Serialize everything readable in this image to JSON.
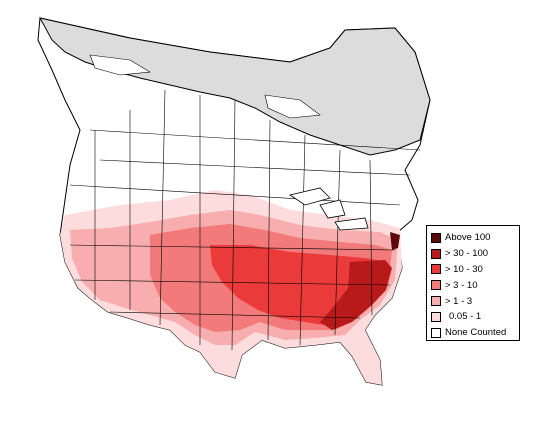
{
  "legend": {
    "items": [
      {
        "label": "Above 100",
        "color": "#5a0a0a"
      },
      {
        "label": "> 30 - 100",
        "color": "#b81a1a"
      },
      {
        "label": "> 10 - 30",
        "color": "#ea3a3a"
      },
      {
        "label": "> 3 - 10",
        "color": "#f27a7a"
      },
      {
        "label": "> 1 - 3",
        "color": "#f8aeae"
      },
      {
        "label": "0.05 - 1",
        "color": "#fcdcdc"
      },
      {
        "label": "None Counted",
        "color": "#ffffff"
      }
    ]
  },
  "map": {
    "colors": {
      "outside_range": "#dcdcdc",
      "land": "#ffffff",
      "border": "#000000"
    }
  }
}
